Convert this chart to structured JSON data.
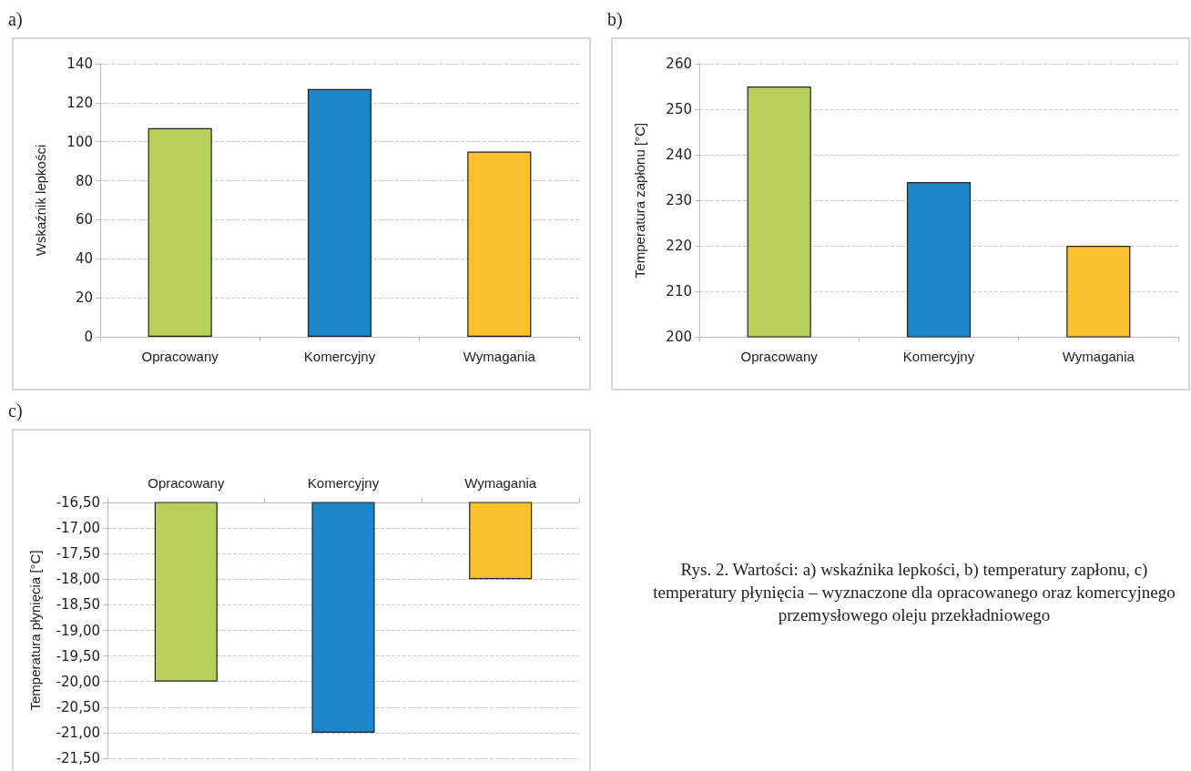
{
  "chart_data": [
    {
      "type": "bar",
      "title": "a)",
      "ylabel": "Wskaźnik lepkości",
      "categories": [
        "Opracowany",
        "Komercyjny",
        "Wymagania"
      ],
      "values": [
        107,
        127,
        95
      ],
      "colors": [
        "#b5d15a",
        "#1e86c8",
        "#f9c12c"
      ],
      "ylim": [
        0,
        140
      ],
      "yticks": [
        0,
        20,
        40,
        60,
        80,
        100,
        120,
        140
      ],
      "grid": "y"
    },
    {
      "type": "bar",
      "title": "b)",
      "ylabel": "Temperatura zapłonu [°C]",
      "categories": [
        "Opracowany",
        "Komercyjny",
        "Wymagania"
      ],
      "values": [
        255,
        234,
        220
      ],
      "colors": [
        "#b5d15a",
        "#1e86c8",
        "#f9c12c"
      ],
      "ylim": [
        200,
        260
      ],
      "yticks": [
        200,
        210,
        220,
        230,
        240,
        250,
        260
      ],
      "grid": "y"
    },
    {
      "type": "bar",
      "title": "c)",
      "ylabel": "Temperatura płynięcia [°C]",
      "categories": [
        "Opracowany",
        "Komercyjny",
        "Wymagania"
      ],
      "values": [
        -20,
        -21,
        -18
      ],
      "colors": [
        "#b5d15a",
        "#1e86c8",
        "#f9c12c"
      ],
      "ylim": [
        -21.5,
        -16.5
      ],
      "yticks": [
        {
          "value": -21.5,
          "label": "-21,50"
        },
        {
          "value": -21,
          "label": "-21,00"
        },
        {
          "value": -20.5,
          "label": "-20,50"
        },
        {
          "value": -20,
          "label": "-20,00"
        },
        {
          "value": -19.5,
          "label": "-19,50"
        },
        {
          "value": -19,
          "label": "-19,00"
        },
        {
          "value": -18.5,
          "label": "-18,50"
        },
        {
          "value": -18,
          "label": "-18,00"
        },
        {
          "value": -17.5,
          "label": "-17,50"
        },
        {
          "value": -17,
          "label": "-17,00"
        },
        {
          "value": -16.5,
          "label": "-16,50"
        }
      ],
      "grid": "y"
    },
    {
      "type": "other",
      "annotations": [
        "Rys. 2. Wartości: a) wskaźnika lepkości, b) temperatury zapłonu, c) temperatury płynięcia – wyznaczone dla opracowanego oraz komercyjnego przemysłowego oleju przekładniowego"
      ]
    }
  ]
}
